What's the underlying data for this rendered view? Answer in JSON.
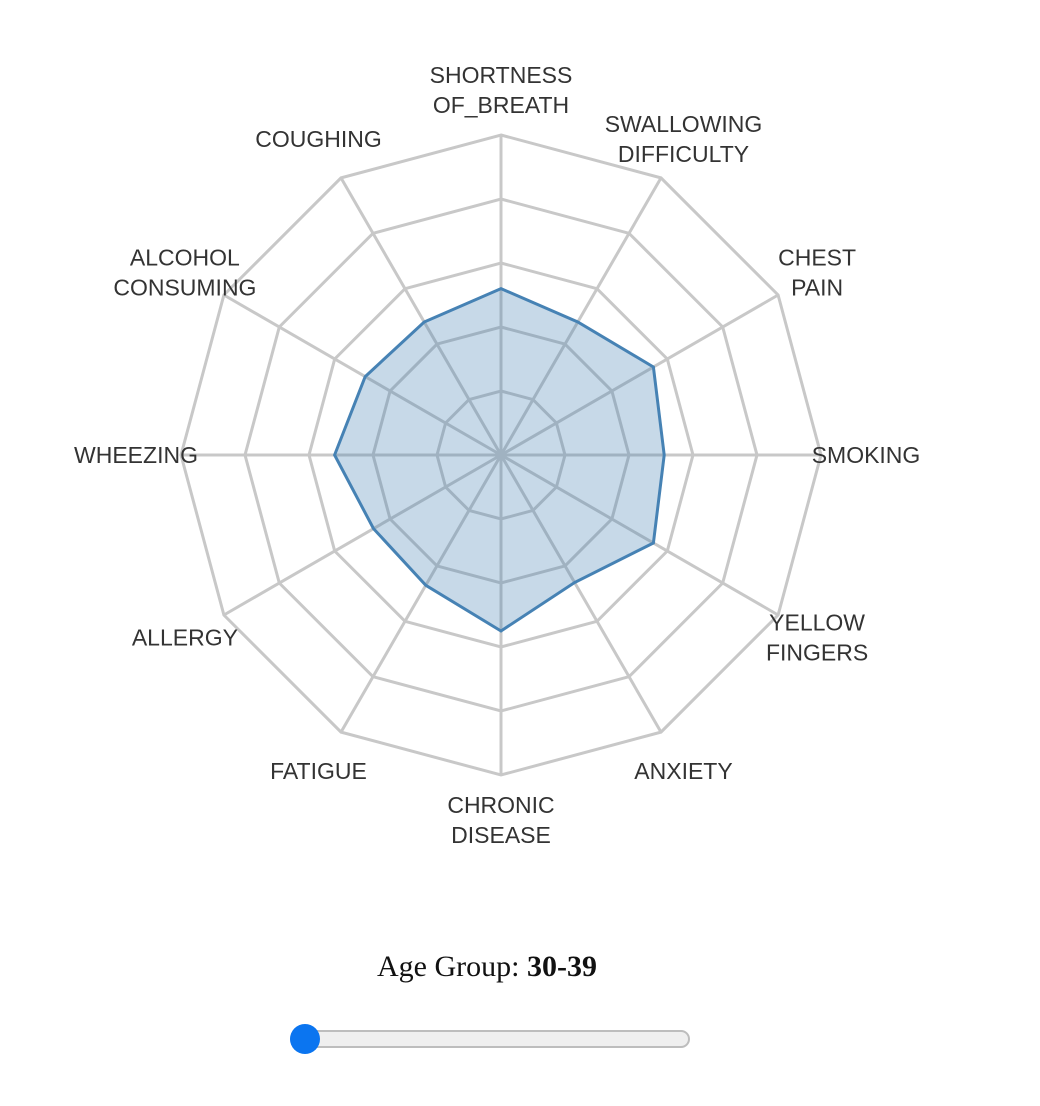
{
  "chart_data": {
    "type": "radar",
    "axes": [
      [
        "SHORTNESS",
        "OF_BREATH"
      ],
      [
        "SWALLOWING",
        "DIFFICULTY"
      ],
      [
        "CHEST",
        "PAIN"
      ],
      [
        "SMOKING"
      ],
      [
        "YELLOW",
        "FINGERS"
      ],
      [
        "ANXIETY"
      ],
      [
        "CHRONIC",
        "DISEASE"
      ],
      [
        "FATIGUE"
      ],
      [
        "ALLERGY"
      ],
      [
        "WHEEZING"
      ],
      [
        "ALCOHOL",
        "CONSUMING"
      ],
      [
        "COUGHING"
      ]
    ],
    "series": [
      {
        "values": [
          0.52,
          0.48,
          0.55,
          0.51,
          0.55,
          0.46,
          0.55,
          0.47,
          0.46,
          0.52,
          0.49,
          0.48
        ]
      }
    ],
    "range": [
      0,
      1
    ],
    "grid_levels": 5,
    "colors": {
      "grid": "#c8c8c8",
      "series_stroke": "#4682b4",
      "series_fill": "#4682b4",
      "label": "#333333"
    }
  },
  "controls": {
    "age_label_prefix": "Age Group: ",
    "age_value": "30-39",
    "slider_position": 0
  }
}
